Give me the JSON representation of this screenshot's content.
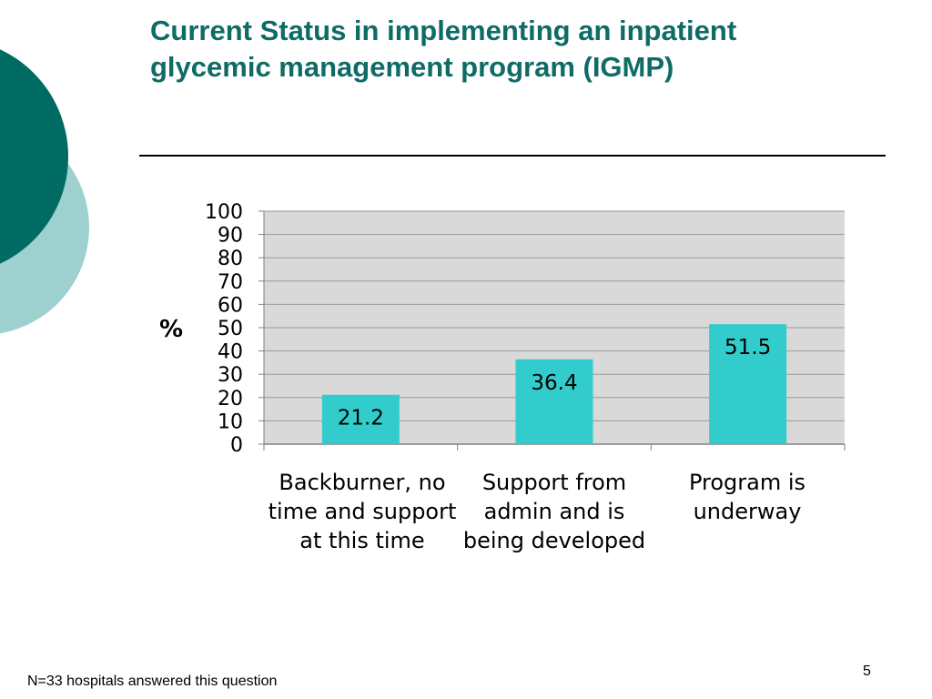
{
  "slide": {
    "title": "Current Status in implementing an inpatient glycemic management program (IGMP)",
    "footnote": "N=33 hospitals answered this question",
    "page_number": "5"
  },
  "colors": {
    "title": "#0e6b66",
    "bar": "#33cccc",
    "plot_bg": "#d9d9d9",
    "grid": "#9a9a9a",
    "deco_dark": "#006b63",
    "deco_light": "#9fd0d0"
  },
  "chart_data": {
    "type": "bar",
    "title": "",
    "xlabel": "",
    "ylabel": "%",
    "categories": [
      "Backburner, no time and support at this time",
      "Support from admin and is being developed",
      "Program is underway"
    ],
    "values": [
      21.2,
      36.4,
      51.5
    ],
    "value_labels": [
      "21.2",
      "36.4",
      "51.5"
    ],
    "ylim": [
      0,
      100
    ],
    "yticks": [
      "0",
      "10",
      "20",
      "30",
      "40",
      "50",
      "60",
      "70",
      "80",
      "90",
      "100"
    ],
    "grid": true,
    "legend": "none"
  }
}
